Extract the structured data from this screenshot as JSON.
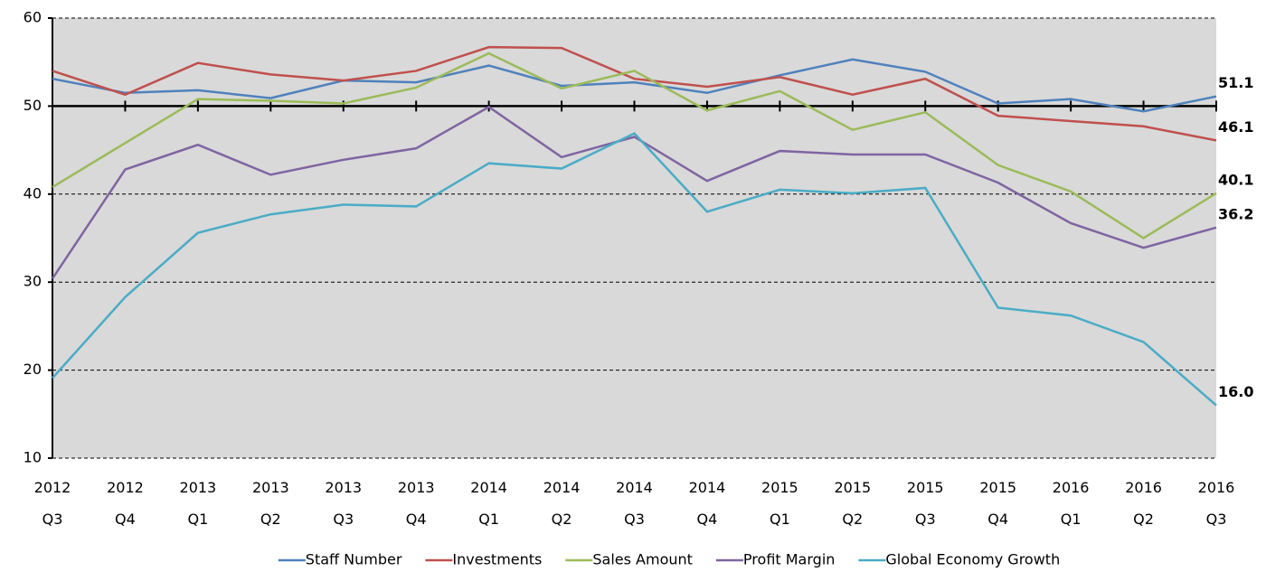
{
  "chart_data": {
    "type": "line",
    "categories": [
      [
        "2012",
        "Q3"
      ],
      [
        "2012",
        "Q4"
      ],
      [
        "2013",
        "Q1"
      ],
      [
        "2013",
        "Q2"
      ],
      [
        "2013",
        "Q3"
      ],
      [
        "2013",
        "Q4"
      ],
      [
        "2014",
        "Q1"
      ],
      [
        "2014",
        "Q2"
      ],
      [
        "2014",
        "Q3"
      ],
      [
        "2014",
        "Q4"
      ],
      [
        "2015",
        "Q1"
      ],
      [
        "2015",
        "Q2"
      ],
      [
        "2015",
        "Q3"
      ],
      [
        "2015",
        "Q4"
      ],
      [
        "2016",
        "Q1"
      ],
      [
        "2016",
        "Q2"
      ],
      [
        "2016",
        "Q3"
      ]
    ],
    "series": [
      {
        "name": "Staff Number",
        "color": "#4f81bd",
        "values": [
          53.1,
          51.5,
          51.8,
          50.9,
          52.9,
          52.7,
          54.6,
          52.3,
          52.7,
          51.5,
          53.5,
          55.3,
          53.9,
          50.3,
          50.8,
          49.4,
          51.1
        ],
        "value_labels": [
          null,
          null,
          null,
          null,
          null,
          null,
          null,
          null,
          null,
          null,
          null,
          null,
          null,
          null,
          null,
          null,
          "51.1"
        ]
      },
      {
        "name": "Investments",
        "color": "#c0504d",
        "values": [
          54.0,
          51.3,
          54.9,
          53.6,
          52.9,
          54.0,
          56.7,
          56.6,
          53.1,
          52.2,
          53.3,
          51.3,
          53.1,
          48.9,
          48.3,
          47.7,
          46.1
        ],
        "value_labels": [
          null,
          null,
          null,
          null,
          null,
          null,
          null,
          null,
          null,
          null,
          null,
          null,
          null,
          null,
          null,
          null,
          "46.1"
        ]
      },
      {
        "name": "Sales Amount",
        "color": "#9bbb59",
        "values": [
          40.8,
          45.8,
          50.8,
          50.6,
          50.3,
          52.1,
          56.0,
          52.0,
          54.0,
          49.5,
          51.7,
          47.3,
          49.3,
          43.3,
          40.3,
          35.0,
          40.1
        ],
        "value_labels": [
          null,
          null,
          null,
          null,
          null,
          null,
          null,
          null,
          null,
          null,
          null,
          null,
          null,
          null,
          null,
          null,
          "40.1"
        ]
      },
      {
        "name": "Profit Margin",
        "color": "#8064a2",
        "values": [
          30.4,
          42.8,
          45.6,
          42.2,
          43.9,
          45.2,
          49.9,
          44.2,
          46.5,
          41.5,
          44.9,
          44.5,
          44.5,
          41.3,
          36.7,
          33.9,
          36.2
        ],
        "value_labels": [
          null,
          null,
          null,
          null,
          null,
          null,
          null,
          null,
          null,
          null,
          null,
          null,
          null,
          null,
          null,
          null,
          "36.2"
        ]
      },
      {
        "name": "Global Economy Growth",
        "color": "#4bacc6",
        "values": [
          19.1,
          28.3,
          35.6,
          37.7,
          38.8,
          38.6,
          43.5,
          42.9,
          46.9,
          38.0,
          40.5,
          40.1,
          40.7,
          27.1,
          26.2,
          23.2,
          16.0
        ],
        "value_labels": [
          null,
          null,
          null,
          null,
          null,
          null,
          null,
          null,
          null,
          null,
          null,
          null,
          null,
          null,
          null,
          null,
          "16.0"
        ]
      }
    ],
    "ylim": [
      10,
      60
    ],
    "yticks": [
      10,
      20,
      30,
      40,
      50,
      60
    ],
    "x_axis_crosses": 50,
    "grid": true,
    "legend": "bottom"
  }
}
